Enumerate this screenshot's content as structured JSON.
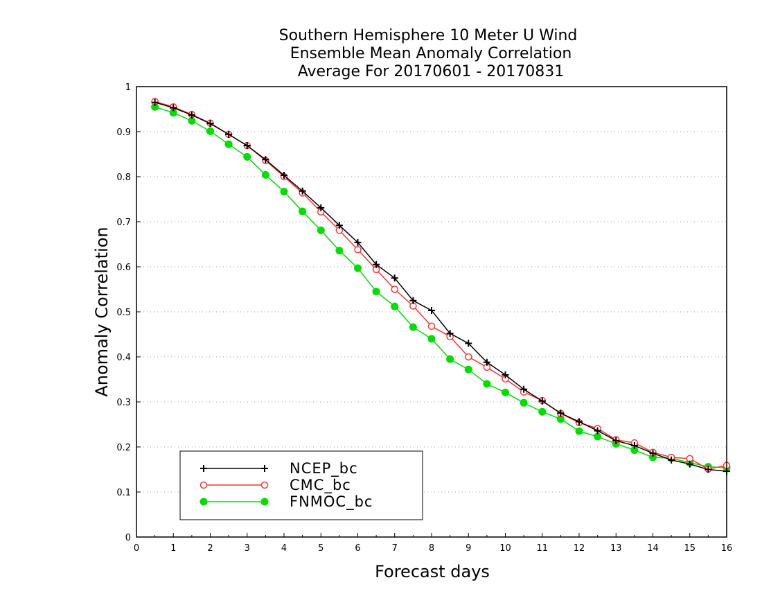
{
  "chart_data": {
    "type": "line",
    "title_lines": [
      "Southern Hemisphere 10 Meter U Wind",
      "Ensemble Mean Anomaly Correlation",
      "Average For 20170601 - 20170831"
    ],
    "xlabel": "Forecast days",
    "ylabel": "Anomaly Correlation",
    "xlim": [
      0,
      16
    ],
    "ylim": [
      0,
      1
    ],
    "xticks": [
      "0",
      "1",
      "2",
      "3",
      "4",
      "5",
      "6",
      "7",
      "8",
      "9",
      "10",
      "11",
      "12",
      "13",
      "14",
      "15",
      "16"
    ],
    "yticks": [
      "0",
      "0.1",
      "0.2",
      "0.3",
      "0.4",
      "0.5",
      "0.6",
      "0.7",
      "0.8",
      "0.9",
      "1"
    ],
    "grid": "horizontal dotted",
    "legend_position": "bottom-left",
    "x": [
      0.5,
      1,
      1.5,
      2,
      2.5,
      3,
      3.5,
      4,
      4.5,
      5,
      5.5,
      6,
      6.5,
      7,
      7.5,
      8,
      8.5,
      9,
      9.5,
      10,
      10.5,
      11,
      11.5,
      12,
      12.5,
      13,
      13.5,
      14,
      14.5,
      15,
      15.5,
      16
    ],
    "series": [
      {
        "name": "NCEP_bc",
        "color": "#000000",
        "marker": "plus",
        "values": [
          0.965,
          0.953,
          0.937,
          0.918,
          0.894,
          0.869,
          0.838,
          0.803,
          0.768,
          0.731,
          0.692,
          0.654,
          0.605,
          0.575,
          0.525,
          0.503,
          0.452,
          0.43,
          0.388,
          0.36,
          0.328,
          0.302,
          0.275,
          0.256,
          0.236,
          0.214,
          0.203,
          0.186,
          0.171,
          0.162,
          0.15,
          0.146
        ]
      },
      {
        "name": "CMC_bc",
        "color": "#ff3333",
        "marker": "open-circle",
        "values": [
          0.967,
          0.955,
          0.938,
          0.919,
          0.894,
          0.869,
          0.836,
          0.8,
          0.764,
          0.722,
          0.681,
          0.638,
          0.594,
          0.55,
          0.513,
          0.468,
          0.445,
          0.4,
          0.377,
          0.351,
          0.322,
          0.303,
          0.274,
          0.254,
          0.241,
          0.216,
          0.209,
          0.188,
          0.177,
          0.174,
          0.151,
          0.159
        ]
      },
      {
        "name": "FNMOC_bc",
        "color": "#00dd00",
        "marker": "filled-circle",
        "values": [
          0.955,
          0.942,
          0.924,
          0.901,
          0.872,
          0.844,
          0.804,
          0.767,
          0.723,
          0.681,
          0.636,
          0.597,
          0.545,
          0.512,
          0.466,
          0.44,
          0.395,
          0.372,
          0.34,
          0.321,
          0.298,
          0.278,
          0.262,
          0.235,
          0.223,
          0.207,
          0.193,
          0.177,
          0.175,
          0.165,
          0.156,
          0.154
        ]
      }
    ]
  }
}
